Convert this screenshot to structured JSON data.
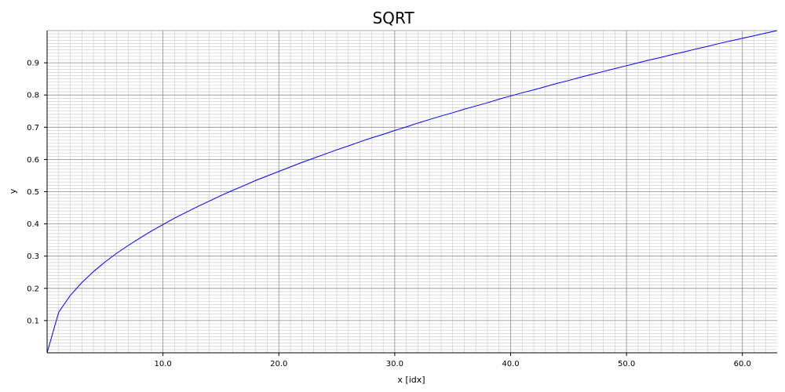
{
  "chart_data": {
    "type": "line",
    "title": "SQRT",
    "xlabel": "x [idx]",
    "ylabel": "y",
    "xlim": [
      0,
      63
    ],
    "ylim": [
      0,
      1.0
    ],
    "grid": true,
    "minor_grid": true,
    "x_ticks": [
      10.0,
      20.0,
      30.0,
      40.0,
      50.0,
      60.0
    ],
    "x_tick_labels": [
      "10.0",
      "20.0",
      "30.0",
      "40.0",
      "50.0",
      "60.0"
    ],
    "y_ticks": [
      0.1,
      0.2,
      0.3,
      0.4,
      0.5,
      0.6,
      0.7,
      0.8,
      0.9
    ],
    "y_tick_labels": [
      "0.1",
      "0.2",
      "0.3",
      "0.4",
      "0.5",
      "0.6",
      "0.7",
      "0.8",
      "0.9"
    ],
    "series": [
      {
        "color": "#0000ff",
        "x": [
          0,
          1,
          2,
          3,
          4,
          5,
          6,
          7,
          8,
          9,
          10,
          11,
          12,
          13,
          14,
          15,
          16,
          17,
          18,
          19,
          20,
          21,
          22,
          23,
          24,
          25,
          26,
          27,
          28,
          29,
          30,
          31,
          32,
          33,
          34,
          35,
          36,
          37,
          38,
          39,
          40,
          41,
          42,
          43,
          44,
          45,
          46,
          47,
          48,
          49,
          50,
          51,
          52,
          53,
          54,
          55,
          56,
          57,
          58,
          59,
          60,
          61,
          62,
          63
        ],
        "values": [
          0.0,
          0.126,
          0.178,
          0.218,
          0.252,
          0.282,
          0.309,
          0.333,
          0.356,
          0.378,
          0.398,
          0.418,
          0.436,
          0.454,
          0.471,
          0.488,
          0.504,
          0.519,
          0.535,
          0.549,
          0.563,
          0.577,
          0.591,
          0.604,
          0.617,
          0.63,
          0.642,
          0.655,
          0.667,
          0.678,
          0.69,
          0.701,
          0.713,
          0.724,
          0.735,
          0.745,
          0.756,
          0.766,
          0.776,
          0.787,
          0.797,
          0.807,
          0.816,
          0.826,
          0.836,
          0.845,
          0.855,
          0.864,
          0.873,
          0.882,
          0.891,
          0.9,
          0.909,
          0.917,
          0.926,
          0.934,
          0.943,
          0.951,
          0.96,
          0.968,
          0.976,
          0.984,
          0.992,
          1.0
        ]
      }
    ]
  }
}
